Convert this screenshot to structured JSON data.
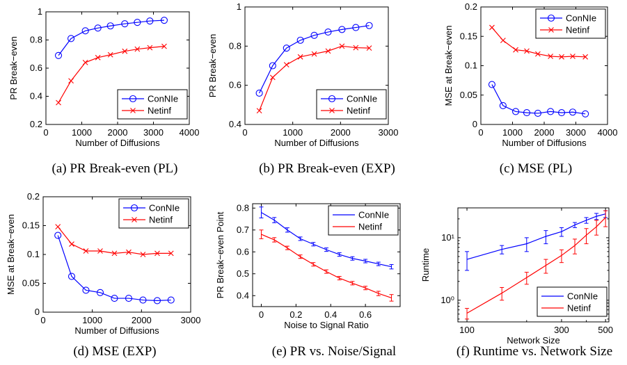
{
  "colors": {
    "conntie": "#0000ff",
    "netinf": "#ff0000"
  },
  "chart_data": [
    {
      "type": "line",
      "caption": "(a)  PR Break-even (PL)",
      "xlabel": "Number of Diffusions",
      "ylabel": "PR Break−even",
      "xlim": [
        0,
        4000
      ],
      "ylim": [
        0.2,
        1
      ],
      "xticks": [
        0,
        1000,
        2000,
        3000,
        4000
      ],
      "xtick_labels": [
        "0",
        "1000",
        "2000",
        "3000",
        "4000"
      ],
      "yticks": [
        0.2,
        0.4,
        0.6,
        0.8,
        1
      ],
      "ytick_labels": [
        "0.2",
        "0.4",
        "0.6",
        "0.8",
        "1"
      ],
      "legend": "lower-right",
      "series": [
        {
          "name": "ConNIe",
          "marker": "o",
          "x": [
            350,
            700,
            1100,
            1450,
            1800,
            2200,
            2550,
            2900,
            3300
          ],
          "y": [
            0.69,
            0.81,
            0.865,
            0.885,
            0.9,
            0.915,
            0.925,
            0.935,
            0.94
          ]
        },
        {
          "name": "Netinf",
          "marker": "x",
          "x": [
            350,
            700,
            1100,
            1450,
            1800,
            2200,
            2550,
            2900,
            3300
          ],
          "y": [
            0.355,
            0.51,
            0.64,
            0.675,
            0.695,
            0.72,
            0.735,
            0.745,
            0.755
          ]
        }
      ]
    },
    {
      "type": "line",
      "caption": "(b)  PR Break-even (EXP)",
      "xlabel": "Number of Diffusions",
      "ylabel": "PR Break−even",
      "xlim": [
        0,
        3000
      ],
      "ylim": [
        0.4,
        1
      ],
      "xticks": [
        0,
        1000,
        2000,
        3000
      ],
      "xtick_labels": [
        "0",
        "1000",
        "2000",
        "3000"
      ],
      "yticks": [
        0.4,
        0.6,
        0.8,
        1
      ],
      "ytick_labels": [
        "0.4",
        "0.6",
        "0.8",
        "1"
      ],
      "legend": "lower-right",
      "series": [
        {
          "name": "ConNIe",
          "marker": "o",
          "x": [
            300,
            580,
            870,
            1160,
            1450,
            1740,
            2030,
            2320,
            2600
          ],
          "y": [
            0.56,
            0.7,
            0.79,
            0.83,
            0.855,
            0.872,
            0.885,
            0.895,
            0.905
          ]
        },
        {
          "name": "Netinf",
          "marker": "x",
          "x": [
            300,
            580,
            870,
            1160,
            1450,
            1740,
            2030,
            2320,
            2600
          ],
          "y": [
            0.47,
            0.64,
            0.705,
            0.745,
            0.76,
            0.775,
            0.8,
            0.792,
            0.79
          ]
        }
      ]
    },
    {
      "type": "line",
      "caption": "(c)  MSE (PL)",
      "xlabel": "Number of Diffusions",
      "ylabel": "MSE at Break−even",
      "xlim": [
        0,
        4000
      ],
      "ylim": [
        0,
        0.2
      ],
      "xticks": [
        0,
        1000,
        2000,
        3000,
        4000
      ],
      "xtick_labels": [
        "0",
        "1000",
        "2000",
        "3000",
        "4000"
      ],
      "yticks": [
        0,
        0.05,
        0.1,
        0.15,
        0.2
      ],
      "ytick_labels": [
        "0",
        "0.05",
        "0.1",
        "0.15",
        "0.2"
      ],
      "legend": "top-right",
      "series": [
        {
          "name": "ConNIe",
          "marker": "o",
          "x": [
            350,
            700,
            1100,
            1450,
            1800,
            2200,
            2550,
            2900,
            3300
          ],
          "y": [
            0.068,
            0.032,
            0.022,
            0.02,
            0.019,
            0.022,
            0.02,
            0.021,
            0.018
          ]
        },
        {
          "name": "Netinf",
          "marker": "x",
          "x": [
            350,
            700,
            1100,
            1450,
            1800,
            2200,
            2550,
            2900,
            3300
          ],
          "y": [
            0.165,
            0.143,
            0.127,
            0.125,
            0.12,
            0.116,
            0.115,
            0.116,
            0.115
          ]
        }
      ]
    },
    {
      "type": "line",
      "caption": "(d)  MSE (EXP)",
      "xlabel": "Number of Diffusions",
      "ylabel": "MSE at Break−even",
      "xlim": [
        0,
        3000
      ],
      "ylim": [
        0,
        0.2
      ],
      "xticks": [
        0,
        1000,
        2000,
        3000
      ],
      "xtick_labels": [
        "0",
        "1000",
        "2000",
        "3000"
      ],
      "yticks": [
        0,
        0.05,
        0.1,
        0.15,
        0.2
      ],
      "ytick_labels": [
        "0",
        "0.05",
        "0.1",
        "0.15",
        "0.2"
      ],
      "legend": "top-right",
      "series": [
        {
          "name": "ConNIe",
          "marker": "o",
          "x": [
            300,
            580,
            870,
            1160,
            1450,
            1740,
            2030,
            2320,
            2600
          ],
          "y": [
            0.133,
            0.062,
            0.038,
            0.034,
            0.024,
            0.024,
            0.021,
            0.02,
            0.021
          ]
        },
        {
          "name": "Netinf",
          "marker": "x",
          "x": [
            300,
            580,
            870,
            1160,
            1450,
            1740,
            2030,
            2320,
            2600
          ],
          "y": [
            0.148,
            0.118,
            0.106,
            0.106,
            0.102,
            0.104,
            0.1,
            0.102,
            0.102
          ]
        }
      ]
    },
    {
      "type": "line",
      "caption": "(e)  PR vs. Noise/Signal",
      "xlabel": "Noise to Signal Ratio",
      "ylabel": "PR Break−even Point",
      "xlim": [
        -0.05,
        0.8
      ],
      "ylim": [
        0.35,
        0.82
      ],
      "xticks": [
        0,
        0.2,
        0.4,
        0.6
      ],
      "xtick_labels": [
        "0",
        "0.2",
        "0.4",
        "0.6"
      ],
      "yticks": [
        0.4,
        0.5,
        0.6,
        0.7,
        0.8
      ],
      "ytick_labels": [
        "0.4",
        "0.5",
        "0.6",
        "0.7",
        "0.8"
      ],
      "legend": "top-right",
      "series": [
        {
          "name": "ConNIe",
          "marker": "errorbar",
          "x": [
            0,
            0.075,
            0.15,
            0.225,
            0.3,
            0.375,
            0.45,
            0.525,
            0.6,
            0.675,
            0.75
          ],
          "y": [
            0.78,
            0.745,
            0.7,
            0.66,
            0.635,
            0.61,
            0.588,
            0.57,
            0.558,
            0.545,
            0.532
          ],
          "err": [
            0.025,
            0.012,
            0.01,
            0.008,
            0.008,
            0.008,
            0.008,
            0.008,
            0.008,
            0.008,
            0.01
          ]
        },
        {
          "name": "Netinf",
          "marker": "errorbar",
          "x": [
            0,
            0.075,
            0.15,
            0.225,
            0.3,
            0.375,
            0.45,
            0.525,
            0.6,
            0.675,
            0.75
          ],
          "y": [
            0.68,
            0.655,
            0.618,
            0.578,
            0.543,
            0.51,
            0.48,
            0.457,
            0.435,
            0.41,
            0.39
          ],
          "err": [
            0.02,
            0.01,
            0.008,
            0.008,
            0.008,
            0.008,
            0.008,
            0.008,
            0.008,
            0.01,
            0.015
          ]
        }
      ]
    },
    {
      "type": "line",
      "caption": "(f)  Runtime vs. Network Size",
      "xlabel": "Network Size",
      "ylabel": "Runtime",
      "xscale": "log",
      "yscale": "log",
      "xlim": [
        90,
        520
      ],
      "ylim": [
        0.45,
        30
      ],
      "xticks": [
        100,
        300,
        500
      ],
      "xtick_labels": [
        "100",
        "300",
        "500"
      ],
      "yticks": [
        1,
        10
      ],
      "ytick_labels": [
        "10⁰",
        "10¹"
      ],
      "legend": "lower-right",
      "series": [
        {
          "name": "ConNIe",
          "marker": "errorbar",
          "x": [
            100,
            150,
            200,
            250,
            300,
            350,
            400,
            450,
            500
          ],
          "y": [
            4.5,
            6.5,
            8,
            10.5,
            12.5,
            16,
            19,
            22,
            24
          ],
          "err": [
            1.5,
            1.0,
            2.0,
            2.5,
            2.0,
            1.5,
            2.0,
            2.5,
            3.0
          ]
        },
        {
          "name": "Netinf",
          "marker": "errorbar",
          "x": [
            100,
            150,
            200,
            250,
            300,
            350,
            400,
            450,
            500
          ],
          "y": [
            0.62,
            1.3,
            2.3,
            3.6,
            5.2,
            7.5,
            11,
            15,
            21
          ],
          "err": [
            0.12,
            0.3,
            0.5,
            0.9,
            1.2,
            2.0,
            3.0,
            4.0,
            6.0
          ]
        }
      ]
    }
  ]
}
